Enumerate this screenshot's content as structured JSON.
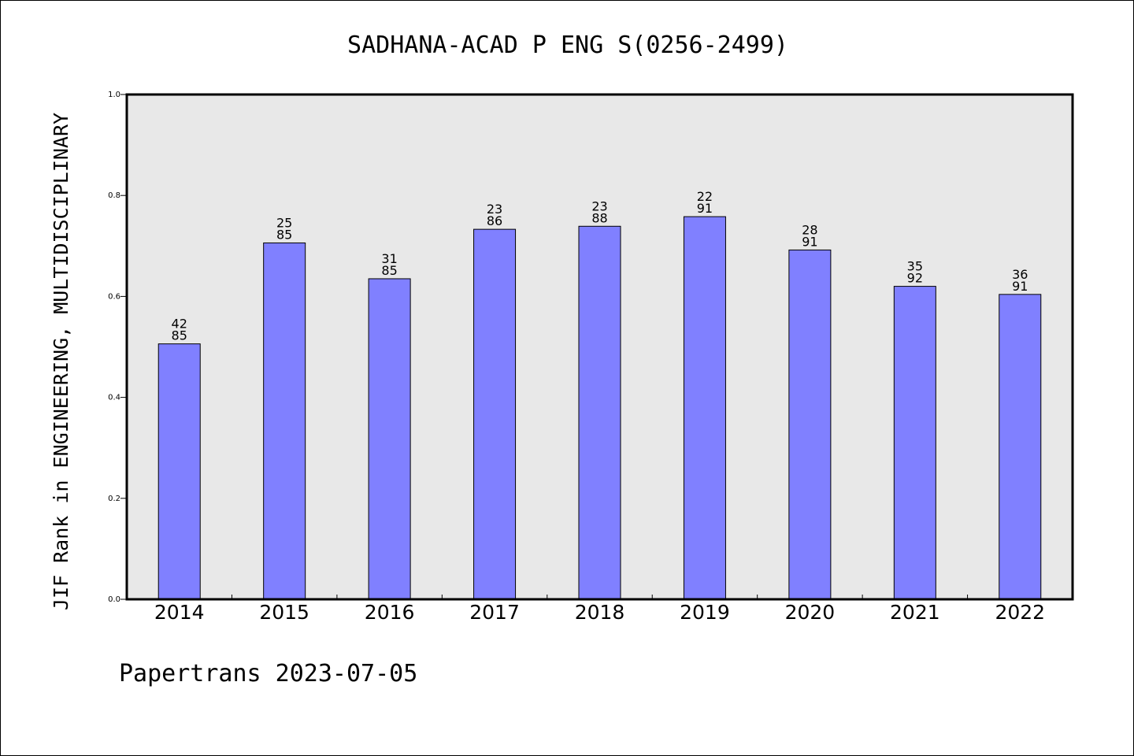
{
  "chart_data": {
    "type": "bar",
    "title": "SADHANA-ACAD P ENG S(0256-2499)",
    "ylabel": "JIF Rank in ENGINEERING, MULTIDISCIPLINARY",
    "xlabel": "",
    "ylim": [
      0.0,
      1.0
    ],
    "yticks": [
      "0.0",
      "0.2",
      "0.4",
      "0.6",
      "0.8",
      "1.0"
    ],
    "categories": [
      "2014",
      "2015",
      "2016",
      "2017",
      "2018",
      "2019",
      "2020",
      "2021",
      "2022"
    ],
    "values": [
      0.506,
      0.706,
      0.635,
      0.733,
      0.739,
      0.758,
      0.692,
      0.62,
      0.604
    ],
    "rank": [
      "42",
      "25",
      "31",
      "23",
      "23",
      "22",
      "28",
      "35",
      "36"
    ],
    "total": [
      "85",
      "85",
      "85",
      "86",
      "88",
      "91",
      "91",
      "92",
      "91"
    ],
    "grid": false,
    "legend": "none",
    "colors": {
      "bar_fill": "#8080ff",
      "plot_background": "#e8e8e8",
      "outline": "#000000"
    }
  },
  "footer": "Papertrans 2023-07-05"
}
